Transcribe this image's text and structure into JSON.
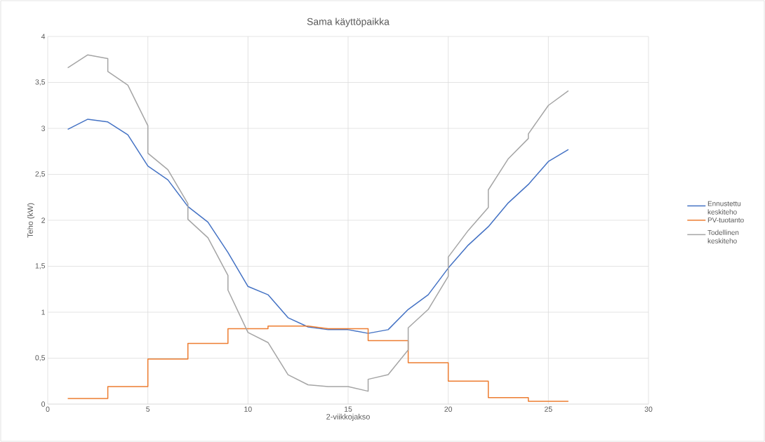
{
  "chart_data": {
    "type": "line",
    "title": "Sama käyttöpaikka",
    "xlabel": "2-viikkojakso",
    "ylabel": "Teho (kW)",
    "xlim": [
      0,
      30
    ],
    "xticks": [
      0,
      5,
      10,
      15,
      20,
      25,
      30
    ],
    "ylim": [
      0,
      4
    ],
    "yticks": [
      0,
      {
        "value": 0.5,
        "label": "0,5"
      },
      1,
      {
        "value": 1.5,
        "label": "1,5"
      },
      2,
      {
        "value": 2.5,
        "label": "2,5"
      },
      3,
      {
        "value": 3.5,
        "label": "3,5"
      },
      4
    ],
    "grid": true,
    "legend": "right",
    "series": [
      {
        "name": "Ennustettu keskiteho",
        "color": "#4472c4",
        "x": [
          1,
          2,
          3,
          4,
          5,
          6,
          7,
          8,
          9,
          10,
          11,
          12,
          13,
          14,
          15,
          16,
          17,
          18,
          19,
          20,
          21,
          22,
          23,
          24,
          25,
          26
        ],
        "values": [
          2.99,
          3.1,
          3.07,
          2.93,
          2.59,
          2.44,
          2.15,
          1.98,
          1.65,
          1.28,
          1.19,
          0.94,
          0.84,
          0.81,
          0.81,
          0.77,
          0.81,
          1.03,
          1.19,
          1.48,
          1.73,
          1.93,
          2.19,
          2.39,
          2.64,
          2.77
        ]
      },
      {
        "name": "PV-tuotanto",
        "color": "#ed7d31",
        "x": [
          1,
          2,
          3,
          3,
          4,
          5,
          5,
          6,
          7,
          7,
          8,
          9,
          9,
          10,
          11,
          11,
          12,
          13,
          14,
          15,
          16,
          16,
          17,
          18,
          18,
          19,
          20,
          20,
          21,
          22,
          22,
          23,
          24,
          24,
          25,
          26
        ],
        "values": [
          0.06,
          0.06,
          0.06,
          0.19,
          0.19,
          0.19,
          0.49,
          0.49,
          0.49,
          0.66,
          0.66,
          0.66,
          0.82,
          0.82,
          0.82,
          0.85,
          0.85,
          0.85,
          0.82,
          0.82,
          0.82,
          0.69,
          0.69,
          0.69,
          0.45,
          0.45,
          0.45,
          0.25,
          0.25,
          0.25,
          0.07,
          0.07,
          0.07,
          0.03,
          0.03,
          0.03
        ]
      },
      {
        "name": "Todellinen keskiteho",
        "color": "#a5a5a5",
        "x": [
          1,
          2,
          3,
          3,
          4,
          5,
          5,
          6,
          7,
          7,
          8,
          9,
          9,
          10,
          11,
          12,
          13,
          14,
          15,
          16,
          16,
          17,
          18,
          18,
          19,
          20,
          20,
          21,
          22,
          22,
          23,
          24,
          24,
          25,
          26
        ],
        "values": [
          3.66,
          3.8,
          3.76,
          3.62,
          3.47,
          3.03,
          2.73,
          2.55,
          2.18,
          2.01,
          1.81,
          1.4,
          1.24,
          0.78,
          0.67,
          0.32,
          0.21,
          0.19,
          0.19,
          0.14,
          0.27,
          0.32,
          0.59,
          0.83,
          1.03,
          1.39,
          1.6,
          1.89,
          2.14,
          2.33,
          2.67,
          2.89,
          2.94,
          3.25,
          3.41
        ]
      }
    ]
  }
}
